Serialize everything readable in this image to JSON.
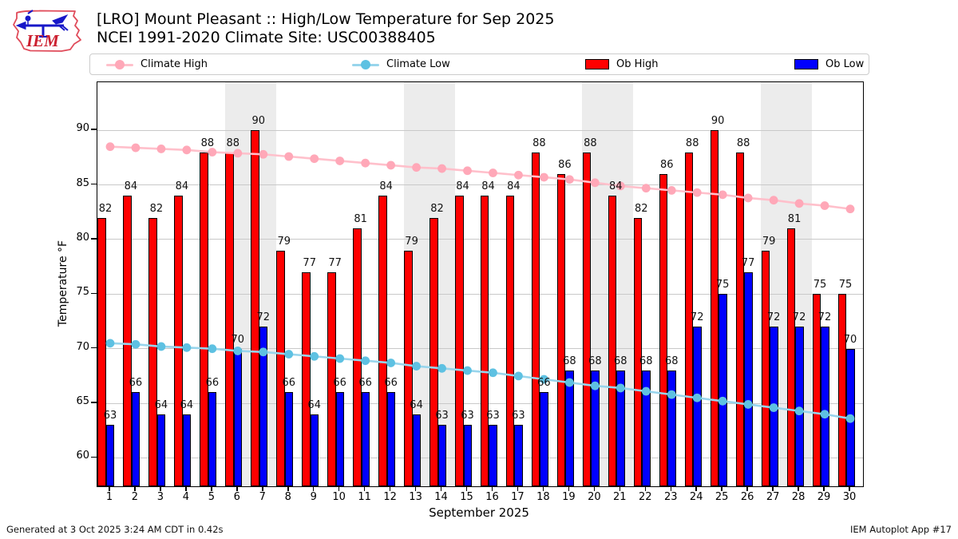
{
  "header": {
    "title_line1": "[LRO] Mount Pleasant :: High/Low Temperature for Sep 2025",
    "title_line2": "NCEI 1991-2020 Climate Site: USC00388405",
    "logo_text": "IEM"
  },
  "legend": {
    "items": [
      {
        "label": "Climate High",
        "type": "line",
        "line_color": "#ffc0cb",
        "marker_color": "#ffa8b8"
      },
      {
        "label": "Climate Low",
        "type": "line",
        "line_color": "#98d5ec",
        "marker_color": "#5ec1e2"
      },
      {
        "label": "Ob High",
        "type": "bar",
        "color": "#ff0000"
      },
      {
        "label": "Ob Low",
        "type": "bar",
        "color": "#0000ff"
      }
    ]
  },
  "chart_data": {
    "type": "bar",
    "x": [
      1,
      2,
      3,
      4,
      5,
      6,
      7,
      8,
      9,
      10,
      11,
      12,
      13,
      14,
      15,
      16,
      17,
      18,
      19,
      20,
      21,
      22,
      23,
      24,
      25,
      26,
      27,
      28,
      29,
      30
    ],
    "series": [
      {
        "name": "Ob High",
        "type": "bar",
        "color": "#ff0000",
        "values": [
          82,
          84,
          82,
          84,
          88,
          88,
          90,
          79,
          77,
          77,
          81,
          84,
          79,
          82,
          84,
          84,
          84,
          88,
          86,
          88,
          84,
          82,
          86,
          88,
          90,
          88,
          79,
          81,
          75,
          75
        ]
      },
      {
        "name": "Ob Low",
        "type": "bar",
        "color": "#0000ff",
        "values": [
          63,
          66,
          64,
          64,
          66,
          70,
          72,
          66,
          64,
          66,
          66,
          66,
          64,
          63,
          63,
          63,
          63,
          66,
          68,
          68,
          68,
          68,
          68,
          72,
          75,
          77,
          72,
          72,
          72,
          70
        ]
      },
      {
        "name": "Climate High",
        "type": "line",
        "line_color": "#ffc0cb",
        "marker_color": "#ffa8b8",
        "values": [
          88.5,
          88.4,
          88.3,
          88.2,
          88.0,
          87.9,
          87.8,
          87.6,
          87.4,
          87.2,
          87.0,
          86.8,
          86.6,
          86.5,
          86.3,
          86.1,
          85.9,
          85.7,
          85.5,
          85.2,
          84.9,
          84.7,
          84.5,
          84.3,
          84.1,
          83.8,
          83.6,
          83.3,
          83.1,
          82.8
        ]
      },
      {
        "name": "Climate Low",
        "type": "line",
        "line_color": "#98d5ec",
        "marker_color": "#5ec1e2",
        "values": [
          70.5,
          70.4,
          70.2,
          70.1,
          70.0,
          69.8,
          69.7,
          69.5,
          69.3,
          69.1,
          68.9,
          68.7,
          68.4,
          68.2,
          68.0,
          67.8,
          67.5,
          67.2,
          66.9,
          66.6,
          66.4,
          66.1,
          65.8,
          65.5,
          65.2,
          64.9,
          64.6,
          64.3,
          64.0,
          63.6
        ]
      }
    ],
    "title": "[LRO] Mount Pleasant :: High/Low Temperature for Sep 2025",
    "subtitle": "NCEI 1991-2020 Climate Site: USC00388405",
    "xlabel": "September 2025",
    "ylabel": "Temperature °F",
    "yticks": [
      60,
      65,
      70,
      75,
      80,
      85,
      90
    ],
    "ylim": [
      57.4,
      94.4
    ],
    "grid": "horizontal",
    "gridline_color": "#c9c9c9",
    "weekend_bands": [
      [
        5.5,
        7.5
      ],
      [
        12.5,
        14.5
      ],
      [
        19.5,
        21.5
      ],
      [
        26.5,
        28.5
      ]
    ],
    "band_color": "#ececec",
    "legend_position": "top",
    "bar_labels_shown": true
  },
  "footer": {
    "left": "Generated at 3 Oct 2025 3:24 AM CDT in 0.42s",
    "right": "IEM Autoplot App #17"
  }
}
